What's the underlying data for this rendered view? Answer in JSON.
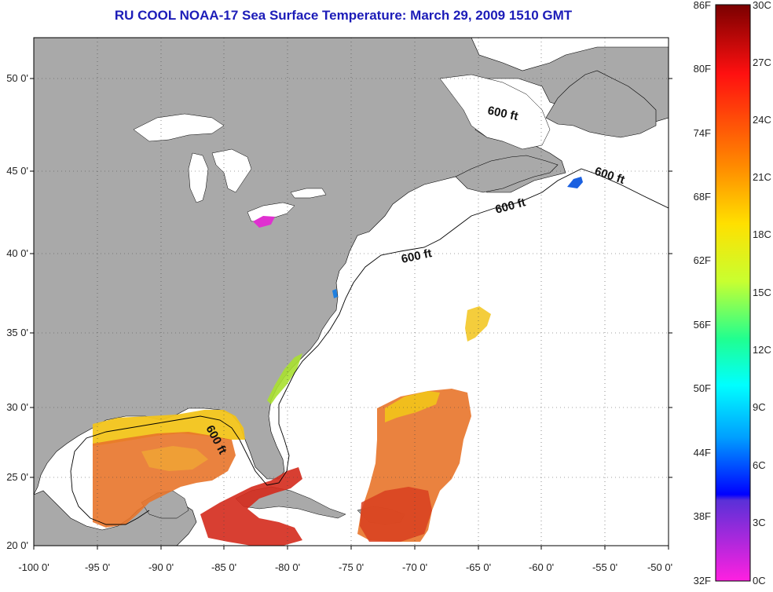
{
  "title": "RU COOL  NOAA-17  Sea Surface Temperature:  March 29, 2009 1510 GMT",
  "lat_labels": [
    "50 0'",
    "45 0'",
    "40 0'",
    "35 0'",
    "30 0'",
    "25 0'",
    "20 0'"
  ],
  "lon_labels": [
    "-100 0'",
    "-95 0'",
    "-90 0'",
    "-85 0'",
    "-80 0'",
    "-75 0'",
    "-70 0'",
    "-65 0'",
    "-60 0'",
    "-55 0'",
    "-50 0'"
  ],
  "depth_labels": [
    "600 ft",
    "600 ft",
    "600 ft",
    "600 ft",
    "600 ft"
  ],
  "colorbar": {
    "fahrenheit": [
      "86F",
      "80F",
      "74F",
      "68F",
      "62F",
      "56F",
      "50F",
      "44F",
      "38F",
      "32F"
    ],
    "celsius": [
      "30C",
      "27C",
      "24C",
      "21C",
      "18C",
      "15C",
      "12C",
      "9C",
      "6C",
      "3C",
      "0C"
    ]
  },
  "colors": {
    "land": "#a9a9a9",
    "title": "#1c1cb8",
    "warm": "#e8742a",
    "hot": "#d42a1c",
    "yellow": "#f2c41a"
  }
}
